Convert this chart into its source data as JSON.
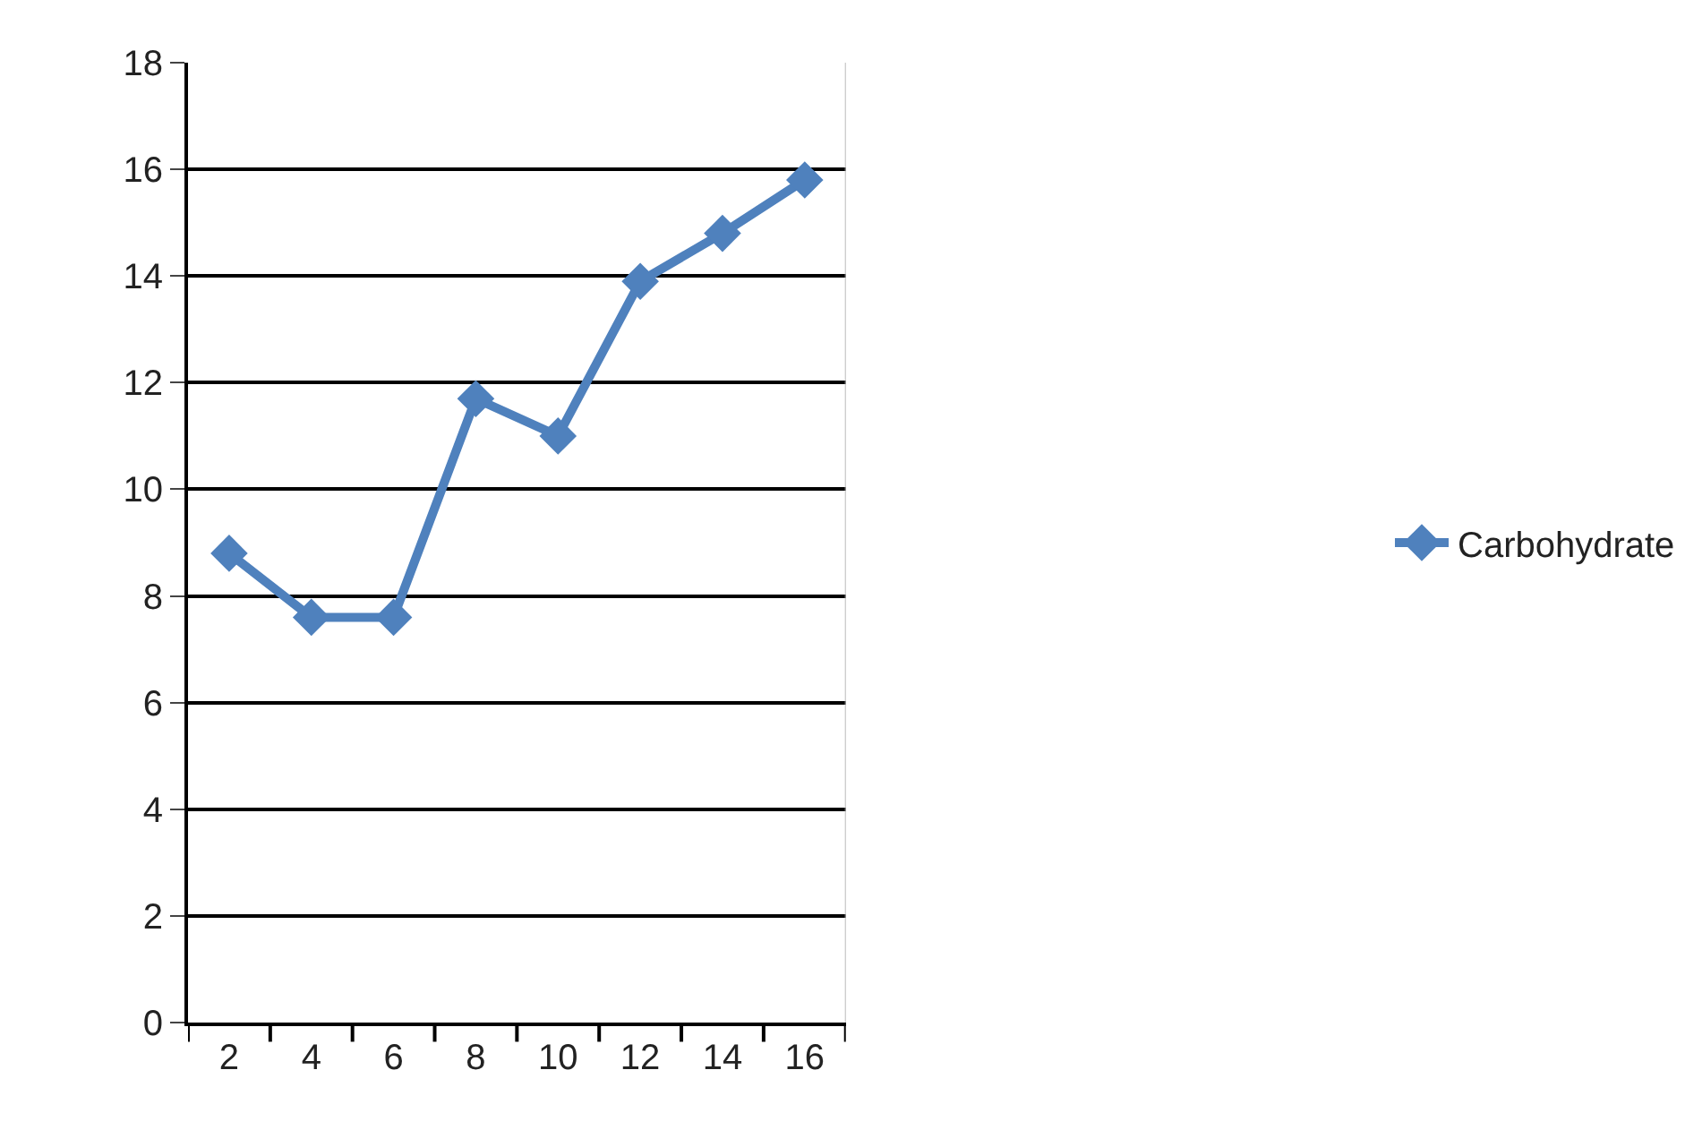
{
  "chart_data": {
    "type": "line",
    "categories": [
      "2",
      "4",
      "6",
      "8",
      "10",
      "12",
      "14",
      "16"
    ],
    "series": [
      {
        "name": "Carbohydrate",
        "color": "#4f81bd",
        "values": [
          8.8,
          7.6,
          7.6,
          11.7,
          11.0,
          13.9,
          14.8,
          15.8
        ]
      }
    ],
    "ylim": [
      0,
      18
    ],
    "yticks": [
      0,
      2,
      4,
      6,
      8,
      10,
      12,
      14,
      16,
      18
    ],
    "grid": "y",
    "legend": "right",
    "marker": "diamond",
    "line_style": "solid"
  }
}
